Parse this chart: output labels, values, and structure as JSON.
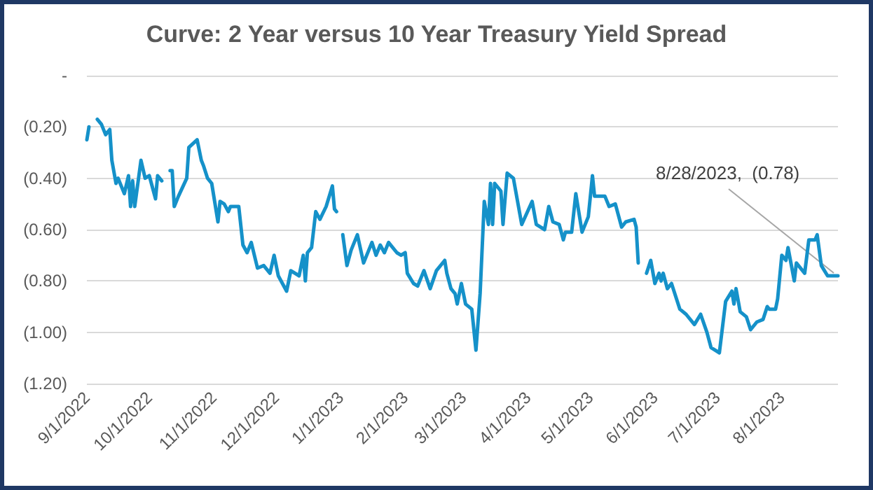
{
  "chart_data": {
    "type": "line",
    "title": "Curve: 2 Year versus 10 Year Treasury Yield Spread",
    "x": [
      "2022-09-01",
      "2022-09-02",
      "2022-09-04",
      "2022-09-06",
      "2022-09-08",
      "2022-09-10",
      "2022-09-12",
      "2022-09-13",
      "2022-09-15",
      "2022-09-16",
      "2022-09-19",
      "2022-09-21",
      "2022-09-22",
      "2022-09-23",
      "2022-09-24",
      "2022-09-27",
      "2022-09-29",
      "2022-10-01",
      "2022-10-02",
      "2022-10-04",
      "2022-10-05",
      "2022-10-07",
      "2022-10-09",
      "2022-10-11",
      "2022-10-12",
      "2022-10-13",
      "2022-10-15",
      "2022-10-19",
      "2022-10-20",
      "2022-10-24",
      "2022-10-26",
      "2022-10-27",
      "2022-10-29",
      "2022-10-31",
      "2022-11-03",
      "2022-11-04",
      "2022-11-06",
      "2022-11-08",
      "2022-11-09",
      "2022-11-13",
      "2022-11-15",
      "2022-11-17",
      "2022-11-19",
      "2022-11-22",
      "2022-11-25",
      "2022-11-28",
      "2022-11-30",
      "2022-12-02",
      "2022-12-04",
      "2022-12-06",
      "2022-12-08",
      "2022-12-12",
      "2022-12-14",
      "2022-12-15",
      "2022-12-16",
      "2022-12-18",
      "2022-12-20",
      "2022-12-22",
      "2022-12-25",
      "2022-12-28",
      "2022-12-29",
      "2022-12-30",
      "2023-01-01",
      "2023-01-02",
      "2023-01-04",
      "2023-01-06",
      "2023-01-09",
      "2023-01-12",
      "2023-01-16",
      "2023-01-18",
      "2023-01-20",
      "2023-01-22",
      "2023-01-24",
      "2023-01-28",
      "2023-01-30",
      "2023-02-01",
      "2023-02-02",
      "2023-02-05",
      "2023-02-07",
      "2023-02-10",
      "2023-02-13",
      "2023-02-16",
      "2023-02-20",
      "2023-02-21",
      "2023-02-23",
      "2023-02-25",
      "2023-02-26",
      "2023-02-28",
      "2023-03-02",
      "2023-03-05",
      "2023-03-07",
      "2023-03-09",
      "2023-03-11",
      "2023-03-13",
      "2023-03-14",
      "2023-03-15",
      "2023-03-16",
      "2023-03-19",
      "2023-03-20",
      "2023-03-22",
      "2023-03-25",
      "2023-03-27",
      "2023-03-29",
      "2023-04-03",
      "2023-04-05",
      "2023-04-09",
      "2023-04-11",
      "2023-04-13",
      "2023-04-16",
      "2023-04-18",
      "2023-04-19",
      "2023-04-22",
      "2023-04-24",
      "2023-04-27",
      "2023-04-30",
      "2023-05-02",
      "2023-05-03",
      "2023-05-08",
      "2023-05-10",
      "2023-05-13",
      "2023-05-16",
      "2023-05-18",
      "2023-05-22",
      "2023-05-23",
      "2023-05-24",
      "2023-05-26",
      "2023-05-28",
      "2023-05-30",
      "2023-06-01",
      "2023-06-03",
      "2023-06-04",
      "2023-06-05",
      "2023-06-07",
      "2023-06-09",
      "2023-06-13",
      "2023-06-16",
      "2023-06-20",
      "2023-06-23",
      "2023-06-26",
      "2023-06-28",
      "2023-07-02",
      "2023-07-05",
      "2023-07-08",
      "2023-07-09",
      "2023-07-10",
      "2023-07-12",
      "2023-07-15",
      "2023-07-17",
      "2023-07-20",
      "2023-07-23",
      "2023-07-25",
      "2023-07-26",
      "2023-07-29",
      "2023-07-30",
      "2023-08-01",
      "2023-08-03",
      "2023-08-04",
      "2023-08-07",
      "2023-08-08",
      "2023-08-12",
      "2023-08-14",
      "2023-08-17",
      "2023-08-18",
      "2023-08-20",
      "2023-08-23",
      "2023-08-26",
      "2023-08-28"
    ],
    "series": [
      {
        "color": "#1591c9",
        "values": [
          -0.25,
          -0.2,
          null,
          -0.17,
          -0.19,
          -0.23,
          -0.21,
          -0.33,
          -0.42,
          -0.4,
          -0.46,
          -0.39,
          -0.51,
          -0.41,
          -0.51,
          -0.33,
          -0.4,
          -0.39,
          -0.42,
          -0.48,
          -0.39,
          -0.41,
          null,
          -0.37,
          -0.37,
          -0.51,
          -0.47,
          -0.4,
          -0.28,
          -0.25,
          -0.33,
          -0.35,
          -0.4,
          -0.42,
          -0.57,
          -0.49,
          -0.5,
          -0.53,
          -0.51,
          -0.51,
          -0.66,
          -0.69,
          -0.65,
          -0.75,
          -0.74,
          -0.77,
          -0.7,
          -0.78,
          -0.81,
          -0.84,
          -0.76,
          -0.78,
          -0.7,
          -0.8,
          -0.69,
          -0.67,
          -0.53,
          -0.56,
          -0.51,
          -0.43,
          -0.52,
          -0.53,
          null,
          -0.62,
          -0.74,
          -0.68,
          -0.62,
          -0.73,
          -0.65,
          -0.7,
          -0.66,
          -0.69,
          -0.65,
          -0.69,
          -0.7,
          -0.69,
          -0.77,
          -0.81,
          -0.82,
          -0.76,
          -0.83,
          -0.76,
          -0.72,
          -0.77,
          -0.83,
          -0.85,
          -0.89,
          -0.81,
          -0.89,
          -0.91,
          -1.07,
          -0.85,
          -0.49,
          -0.58,
          -0.42,
          -0.58,
          -0.42,
          -0.45,
          -0.58,
          -0.38,
          -0.4,
          -0.49,
          -0.58,
          -0.49,
          -0.58,
          -0.6,
          -0.51,
          -0.57,
          -0.58,
          -0.64,
          -0.61,
          -0.61,
          -0.46,
          -0.61,
          -0.55,
          -0.39,
          -0.47,
          -0.47,
          -0.51,
          -0.5,
          -0.59,
          -0.57,
          -0.56,
          -0.59,
          -0.73,
          null,
          -0.77,
          -0.72,
          -0.81,
          -0.77,
          -0.8,
          -0.77,
          -0.83,
          -0.81,
          -0.91,
          -0.93,
          -0.97,
          -0.93,
          -1.0,
          -1.06,
          -1.08,
          -0.88,
          -0.84,
          -0.89,
          -0.83,
          -0.92,
          -0.94,
          -0.99,
          -0.96,
          -0.95,
          -0.9,
          -0.91,
          -0.91,
          -0.87,
          -0.7,
          -0.72,
          -0.67,
          -0.8,
          -0.73,
          -0.77,
          -0.64,
          -0.64,
          -0.62,
          -0.74,
          -0.78,
          -0.78,
          -0.78
        ]
      }
    ],
    "xlim": [
      "2022-09-01",
      "2023-08-28"
    ],
    "xticks": [
      {
        "value": "2022-09-01",
        "label": "9/1/2022"
      },
      {
        "value": "2022-10-01",
        "label": "10/1/2022"
      },
      {
        "value": "2022-11-01",
        "label": "11/1/2022"
      },
      {
        "value": "2022-12-01",
        "label": "12/1/2022"
      },
      {
        "value": "2023-01-01",
        "label": "1/1/2023"
      },
      {
        "value": "2023-02-01",
        "label": "2/1/2023"
      },
      {
        "value": "2023-03-01",
        "label": "3/1/2023"
      },
      {
        "value": "2023-04-01",
        "label": "4/1/2023"
      },
      {
        "value": "2023-05-01",
        "label": "5/1/2023"
      },
      {
        "value": "2023-06-01",
        "label": "6/1/2023"
      },
      {
        "value": "2023-07-01",
        "label": "7/1/2023"
      },
      {
        "value": "2023-08-01",
        "label": "8/1/2023"
      }
    ],
    "ylim": [
      -1.2,
      0
    ],
    "yticks": [
      {
        "value": -1.2,
        "label": "(1.20)"
      },
      {
        "value": -1.0,
        "label": "(1.00)"
      },
      {
        "value": -0.8,
        "label": "(0.80)"
      },
      {
        "value": -0.6,
        "label": "(0.60)"
      },
      {
        "value": -0.4,
        "label": "(0.40)"
      },
      {
        "value": -0.2,
        "label": "(0.20)"
      },
      {
        "value": 0,
        "label": "-"
      }
    ],
    "grid": "y",
    "marker": "none",
    "line_style": "solid",
    "annotations": [
      {
        "text": "8/28/2023,  (0.78)",
        "x": "2023-08-28",
        "y": -0.78
      }
    ]
  }
}
